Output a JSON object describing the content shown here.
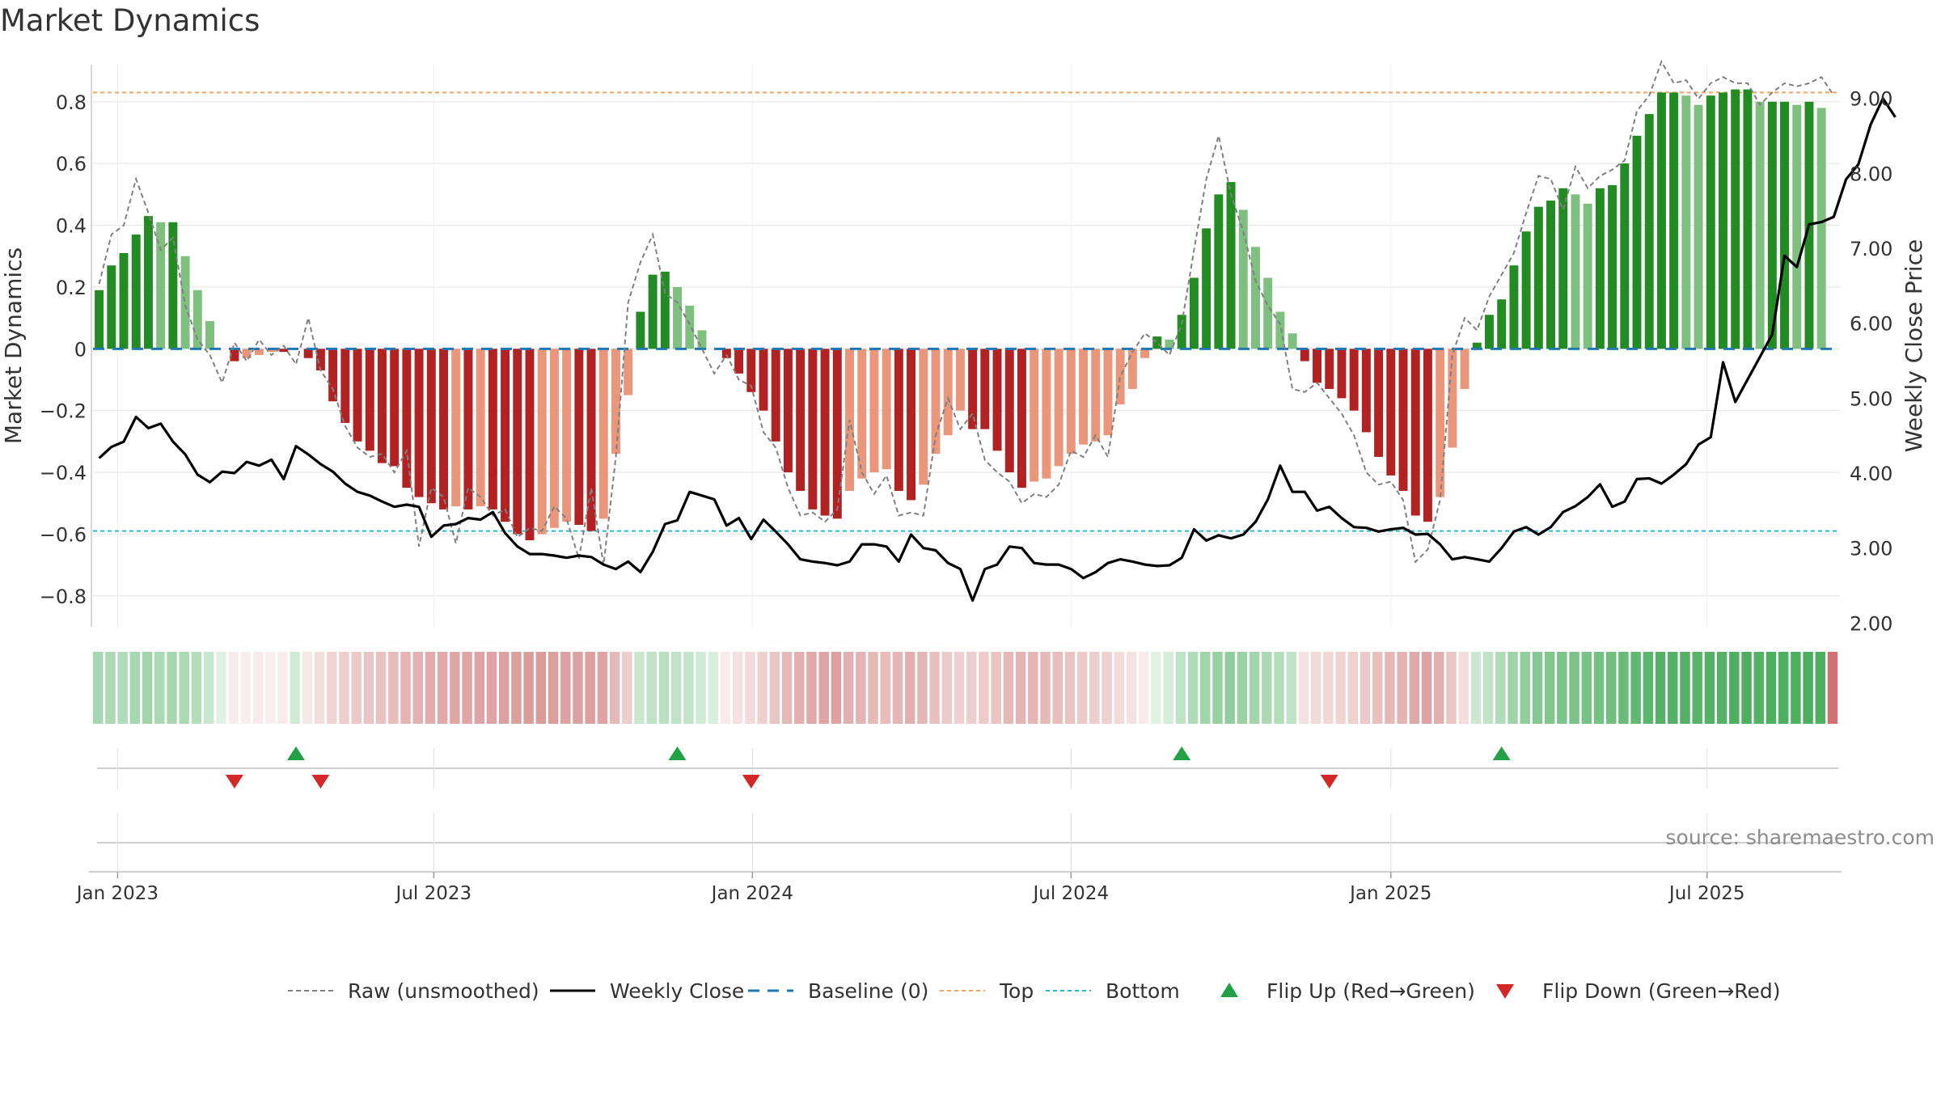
{
  "title": "Market Dynamics",
  "source": "source: sharemaestro.com",
  "colors": {
    "strong_green": "#228b22",
    "weak_green": "#7fbf7f",
    "strong_red": "#b22222",
    "weak_red": "#e9967a",
    "top_line": "#f4a460",
    "bottom_line": "#1fbfd0",
    "baseline": "#1f77b4",
    "raw": "#808080",
    "close": "#000000",
    "flip_up": "#22a046",
    "flip_down": "#d62728",
    "grid": "#e6e6e6",
    "axis_text": "#333333",
    "source_text": "#8c8c8c"
  },
  "chart_data": {
    "type": "bar",
    "title": "Market Dynamics",
    "ylabel_left": "Market Dynamics",
    "ylabel_right": "Weekly Close Price",
    "ylim_left": [
      -0.9,
      0.92
    ],
    "yticks_left": [
      -0.8,
      -0.6,
      -0.4,
      -0.2,
      0,
      0.2,
      0.4,
      0.6,
      0.8
    ],
    "ytick_labels_left": [
      "−0.8",
      "−0.6",
      "−0.4",
      "−0.2",
      "0",
      "0.2",
      "0.4",
      "0.6",
      "0.8"
    ],
    "ylim_right": [
      1.95,
      9.45
    ],
    "yticks_right": [
      2,
      3,
      4,
      5,
      6,
      7,
      8,
      9
    ],
    "ytick_labels_right": [
      "2.00",
      "3.00",
      "4.00",
      "5.00",
      "6.00",
      "7.00",
      "8.00",
      "9.00"
    ],
    "x_weeks": 142,
    "xticks": [
      {
        "week": 2,
        "label": "Jan 2023"
      },
      {
        "week": 27.7,
        "label": "Jul 2023"
      },
      {
        "week": 53.6,
        "label": "Jan 2024"
      },
      {
        "week": 79.5,
        "label": "Jul 2024"
      },
      {
        "week": 105.5,
        "label": "Jan 2025"
      },
      {
        "week": 131.2,
        "label": "Jul 2025"
      }
    ],
    "top": 0.83,
    "bottom": -0.59,
    "baseline": 0,
    "dynamics": [
      0.19,
      0.27,
      0.31,
      0.37,
      0.43,
      0.41,
      0.41,
      0.3,
      0.19,
      0.09,
      0.0,
      -0.04,
      -0.03,
      -0.02,
      -0.01,
      -0.01,
      0.0,
      -0.03,
      -0.07,
      -0.17,
      -0.24,
      -0.3,
      -0.33,
      -0.37,
      -0.38,
      -0.45,
      -0.48,
      -0.5,
      -0.52,
      -0.51,
      -0.52,
      -0.51,
      -0.52,
      -0.56,
      -0.6,
      -0.62,
      -0.6,
      -0.58,
      -0.56,
      -0.57,
      -0.59,
      -0.55,
      -0.34,
      -0.15,
      0.12,
      0.24,
      0.25,
      0.2,
      0.14,
      0.06,
      0.0,
      -0.03,
      -0.08,
      -0.14,
      -0.2,
      -0.3,
      -0.4,
      -0.46,
      -0.52,
      -0.54,
      -0.55,
      -0.46,
      -0.42,
      -0.4,
      -0.39,
      -0.46,
      -0.49,
      -0.44,
      -0.34,
      -0.28,
      -0.2,
      -0.26,
      -0.26,
      -0.33,
      -0.4,
      -0.45,
      -0.43,
      -0.42,
      -0.38,
      -0.34,
      -0.31,
      -0.3,
      -0.28,
      -0.18,
      -0.13,
      -0.03,
      0.04,
      0.03,
      0.11,
      0.23,
      0.39,
      0.5,
      0.54,
      0.45,
      0.33,
      0.23,
      0.12,
      0.05,
      -0.04,
      -0.11,
      -0.13,
      -0.16,
      -0.2,
      -0.27,
      -0.35,
      -0.41,
      -0.46,
      -0.54,
      -0.56,
      -0.48,
      -0.32,
      -0.13,
      0.02,
      0.11,
      0.16,
      0.27,
      0.38,
      0.46,
      0.48,
      0.52,
      0.5,
      0.47,
      0.52,
      0.53,
      0.6,
      0.69,
      0.76,
      0.83,
      0.83,
      0.82,
      0.79,
      0.82,
      0.83,
      0.84,
      0.84,
      0.8,
      0.8,
      0.8,
      0.79,
      0.8,
      0.78
    ],
    "raw": [
      0.21,
      0.37,
      0.4,
      0.55,
      0.44,
      0.32,
      0.36,
      0.14,
      0.03,
      -0.02,
      -0.11,
      0.02,
      -0.04,
      0.03,
      -0.02,
      0.01,
      -0.05,
      0.1,
      -0.07,
      -0.13,
      -0.25,
      -0.32,
      -0.35,
      -0.34,
      -0.4,
      -0.33,
      -0.64,
      -0.45,
      -0.48,
      -0.63,
      -0.45,
      -0.48,
      -0.54,
      -0.52,
      -0.61,
      -0.58,
      -0.59,
      -0.51,
      -0.55,
      -0.68,
      -0.45,
      -0.7,
      -0.35,
      0.15,
      0.28,
      0.37,
      0.18,
      0.15,
      0.08,
      0.0,
      -0.08,
      -0.02,
      -0.1,
      -0.12,
      -0.27,
      -0.32,
      -0.45,
      -0.54,
      -0.53,
      -0.56,
      -0.52,
      -0.23,
      -0.4,
      -0.47,
      -0.41,
      -0.54,
      -0.53,
      -0.54,
      -0.28,
      -0.16,
      -0.26,
      -0.21,
      -0.36,
      -0.4,
      -0.43,
      -0.5,
      -0.47,
      -0.48,
      -0.44,
      -0.33,
      -0.35,
      -0.28,
      -0.35,
      -0.09,
      -0.01,
      0.05,
      0.02,
      -0.02,
      0.08,
      0.32,
      0.55,
      0.69,
      0.5,
      0.38,
      0.22,
      0.14,
      0.08,
      -0.13,
      -0.14,
      -0.11,
      -0.16,
      -0.21,
      -0.28,
      -0.4,
      -0.44,
      -0.43,
      -0.49,
      -0.69,
      -0.65,
      -0.49,
      -0.02,
      0.1,
      0.06,
      0.17,
      0.24,
      0.31,
      0.44,
      0.56,
      0.55,
      0.45,
      0.59,
      0.52,
      0.56,
      0.58,
      0.61,
      0.77,
      0.82,
      0.93,
      0.86,
      0.87,
      0.81,
      0.86,
      0.88,
      0.86,
      0.86,
      0.79,
      0.83,
      0.86,
      0.85,
      0.86,
      0.88,
      0.82
    ],
    "close": [
      4.2,
      4.35,
      4.42,
      4.75,
      4.6,
      4.66,
      4.42,
      4.25,
      3.98,
      3.88,
      4.02,
      4.0,
      4.15,
      4.1,
      4.18,
      3.92,
      4.36,
      4.25,
      4.12,
      4.02,
      3.86,
      3.75,
      3.7,
      3.62,
      3.55,
      3.58,
      3.55,
      3.15,
      3.3,
      3.32,
      3.4,
      3.38,
      3.48,
      3.2,
      3.02,
      2.92,
      2.92,
      2.9,
      2.87,
      2.9,
      2.88,
      2.78,
      2.72,
      2.82,
      2.68,
      2.95,
      3.32,
      3.37,
      3.75,
      3.7,
      3.65,
      3.3,
      3.4,
      3.12,
      3.38,
      3.22,
      3.05,
      2.85,
      2.82,
      2.8,
      2.77,
      2.82,
      3.05,
      3.05,
      3.02,
      2.82,
      3.18,
      3.0,
      2.97,
      2.8,
      2.72,
      2.3,
      2.72,
      2.78,
      3.02,
      3.0,
      2.8,
      2.78,
      2.78,
      2.72,
      2.6,
      2.68,
      2.8,
      2.85,
      2.82,
      2.78,
      2.76,
      2.77,
      2.87,
      3.25,
      3.1,
      3.17,
      3.13,
      3.18,
      3.35,
      3.65,
      4.1,
      3.75,
      3.75,
      3.5,
      3.55,
      3.4,
      3.28,
      3.27,
      3.22,
      3.25,
      3.27,
      3.18,
      3.19,
      3.05,
      2.85,
      2.88,
      2.85,
      2.82,
      3.0,
      3.22,
      3.28,
      3.18,
      3.28,
      3.48,
      3.56,
      3.68,
      3.85,
      3.55,
      3.62,
      3.92,
      3.93,
      3.86,
      3.98,
      4.12,
      4.38,
      4.48,
      5.48,
      4.95,
      5.25,
      5.55,
      5.85,
      6.9,
      6.75,
      7.32,
      7.35,
      7.42,
      7.92,
      8.12,
      8.65,
      9.0,
      8.75
    ],
    "heatmap_values": [
      0.42,
      0.4,
      0.38,
      0.42,
      0.45,
      0.4,
      0.42,
      0.4,
      0.36,
      0.26,
      0.15,
      0.12,
      0.1,
      0.12,
      0.11,
      0.12,
      0.22,
      0.14,
      0.2,
      0.26,
      0.3,
      0.32,
      0.35,
      0.37,
      0.4,
      0.45,
      0.47,
      0.5,
      0.52,
      0.53,
      0.54,
      0.55,
      0.55,
      0.56,
      0.58,
      0.6,
      0.6,
      0.58,
      0.56,
      0.57,
      0.58,
      0.55,
      0.42,
      0.3,
      0.25,
      0.3,
      0.33,
      0.3,
      0.28,
      0.22,
      0.18,
      0.12,
      0.18,
      0.22,
      0.28,
      0.35,
      0.42,
      0.48,
      0.52,
      0.54,
      0.56,
      0.48,
      0.45,
      0.42,
      0.4,
      0.44,
      0.48,
      0.44,
      0.38,
      0.32,
      0.28,
      0.3,
      0.31,
      0.36,
      0.42,
      0.45,
      0.44,
      0.42,
      0.4,
      0.36,
      0.32,
      0.3,
      0.28,
      0.22,
      0.18,
      0.12,
      0.15,
      0.2,
      0.3,
      0.38,
      0.45,
      0.5,
      0.52,
      0.48,
      0.44,
      0.4,
      0.36,
      0.3,
      0.18,
      0.22,
      0.24,
      0.26,
      0.28,
      0.32,
      0.38,
      0.42,
      0.46,
      0.52,
      0.55,
      0.48,
      0.35,
      0.2,
      0.24,
      0.3,
      0.38,
      0.46,
      0.52,
      0.58,
      0.6,
      0.62,
      0.63,
      0.64,
      0.66,
      0.68,
      0.72,
      0.75,
      0.78,
      0.82,
      0.82,
      0.82,
      0.8,
      0.82,
      0.82,
      0.84,
      0.84,
      0.82,
      0.84,
      0.84,
      0.84,
      0.85,
      0.84,
      0.84
    ],
    "flip_up_weeks": [
      16,
      47,
      88,
      114
    ],
    "flip_down_weeks": [
      11,
      18,
      53,
      100
    ],
    "legend": [
      {
        "label": "Raw (unsmoothed)",
        "style": "raw"
      },
      {
        "label": "Weekly Close",
        "style": "close"
      },
      {
        "label": "Baseline (0)",
        "style": "baseline"
      },
      {
        "label": "Top",
        "style": "top"
      },
      {
        "label": "Bottom",
        "style": "bottom"
      },
      {
        "label": "Flip Up (Red→Green)",
        "style": "flip_up"
      },
      {
        "label": "Flip Down (Green→Red)",
        "style": "flip_down"
      }
    ],
    "legend_position": "bottom-center"
  }
}
